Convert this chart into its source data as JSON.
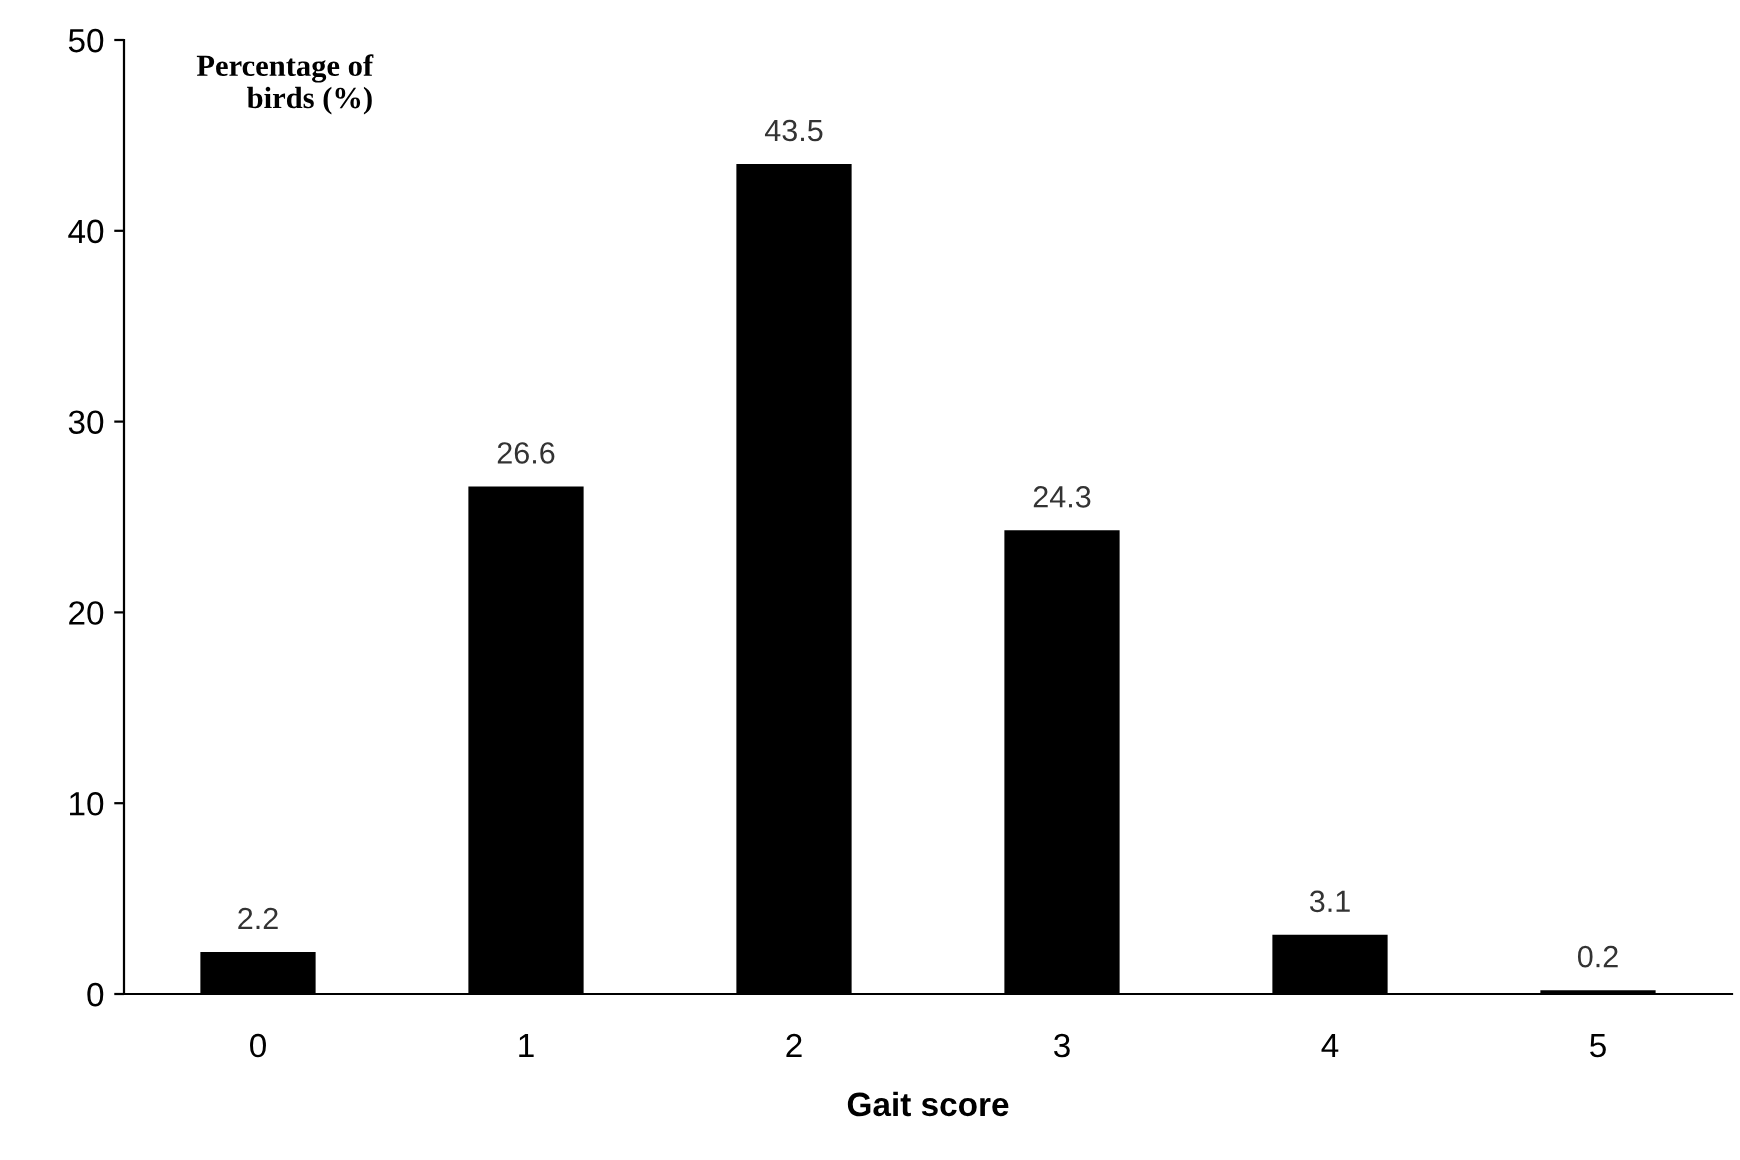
{
  "chart_data": {
    "type": "bar",
    "xlabel": "Gait score",
    "ylabel": "Percentage of\nbirds (%)",
    "categories": [
      "0",
      "1",
      "2",
      "3",
      "4",
      "5"
    ],
    "values": [
      2.2,
      26.6,
      43.5,
      24.3,
      3.1,
      0.2
    ],
    "color": "#000000",
    "ylim": [
      0,
      50
    ],
    "yticks": [
      0,
      10,
      20,
      30,
      40,
      50
    ],
    "data_labels": true,
    "grid": false,
    "legend": false
  }
}
